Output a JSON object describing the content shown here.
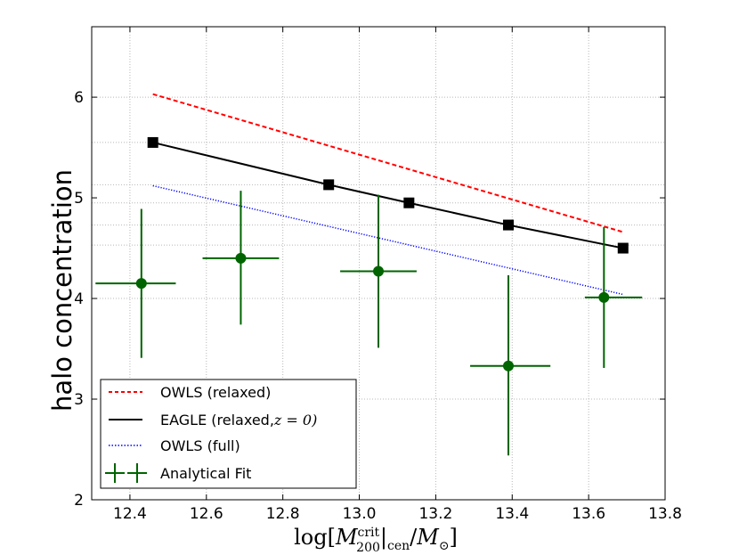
{
  "chart_data": {
    "type": "line",
    "xlabel": "log[M_200^crit|_cen / M_⊙]",
    "ylabel": "halo concentration",
    "xlim": [
      12.3,
      13.8
    ],
    "ylim": [
      2.0,
      6.7
    ],
    "x_ticks": [
      12.4,
      12.6,
      12.8,
      13.0,
      13.2,
      13.4,
      13.6,
      13.8
    ],
    "x_tick_labels": [
      "12.4",
      "12.6",
      "12.8",
      "13.0",
      "13.2",
      "13.4",
      "13.6",
      "13.8"
    ],
    "y_ticks": [
      2,
      3,
      4,
      5,
      6
    ],
    "y_tick_labels": [
      "2",
      "3",
      "4",
      "5",
      "6"
    ],
    "grid_x": [
      12.4,
      12.6,
      12.8,
      13.0,
      13.2,
      13.4,
      13.6
    ],
    "grid_y": [
      3,
      4,
      4.53,
      4.73,
      4.95,
      5.13,
      5.55,
      6
    ],
    "series": [
      {
        "name": "OWLS (relaxed)",
        "style": "dashed",
        "color": "#ff0000",
        "x": [
          12.46,
          13.69
        ],
        "y": [
          6.03,
          4.66
        ]
      },
      {
        "name": "EAGLE (relaxed, z = 0)",
        "style": "solid-square-markers",
        "color": "#000000",
        "x": [
          12.46,
          12.92,
          13.13,
          13.39,
          13.69
        ],
        "y": [
          5.55,
          5.13,
          4.95,
          4.73,
          4.5
        ]
      },
      {
        "name": "OWLS (full)",
        "style": "dotted",
        "color": "#0000ff",
        "x": [
          12.46,
          13.69
        ],
        "y": [
          5.12,
          4.04
        ]
      },
      {
        "name": "Analytical Fit",
        "style": "errorbar-circles",
        "color": "#006400",
        "x": [
          12.43,
          12.69,
          13.05,
          13.39,
          13.64
        ],
        "y": [
          4.15,
          4.4,
          4.27,
          3.33,
          4.01
        ],
        "xerr_low": [
          0.12,
          0.1,
          0.1,
          0.1,
          0.05
        ],
        "xerr_high": [
          0.09,
          0.1,
          0.1,
          0.11,
          0.1
        ],
        "yerr_low": [
          0.74,
          0.66,
          0.76,
          0.89,
          0.7
        ],
        "yerr_high": [
          0.74,
          0.67,
          0.76,
          0.9,
          0.7
        ]
      }
    ],
    "legend": {
      "position": "lower-left",
      "entries": [
        "OWLS (relaxed)",
        "EAGLE (relaxed,",
        "OWLS (full)",
        "Analytical Fit"
      ],
      "eagle_suffix": "z = 0)"
    }
  }
}
